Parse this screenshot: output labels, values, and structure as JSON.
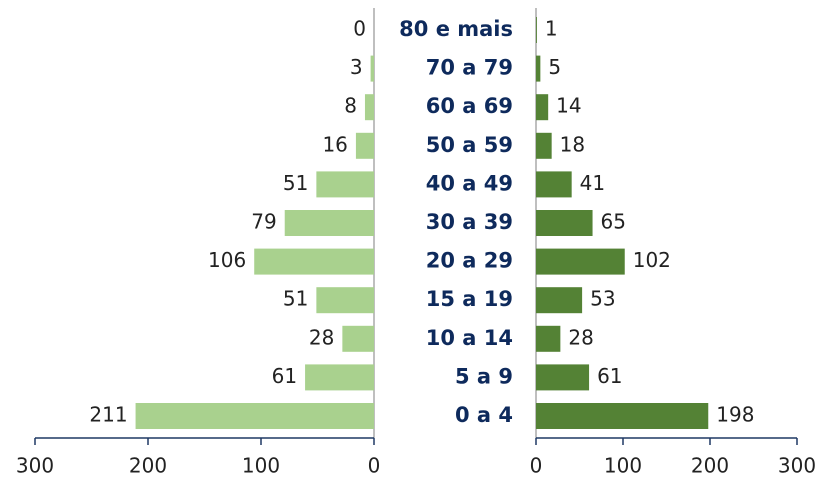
{
  "chart_data": {
    "type": "bar",
    "orientation": "horizontal",
    "categories": [
      "80 e mais",
      "70 a 79",
      "60 a 69",
      "50 a 59",
      "40 a 49",
      "30 a 39",
      "20 a 29",
      "15 a 19",
      "10 a 14",
      "5 a 9",
      "0 a 4"
    ],
    "series": [
      {
        "color": "#a9d18e",
        "values": [
          0,
          3,
          8,
          16,
          51,
          79,
          106,
          51,
          28,
          61,
          211
        ],
        "xlim": [
          0,
          300
        ],
        "xticks": [
          0,
          100,
          200,
          300
        ],
        "reversed": true
      },
      {
        "color": "#548235",
        "values": [
          1,
          5,
          14,
          18,
          41,
          65,
          102,
          53,
          28,
          61,
          198
        ],
        "xlim": [
          0,
          300
        ],
        "xticks": [
          0,
          100,
          200,
          300
        ]
      }
    ]
  }
}
